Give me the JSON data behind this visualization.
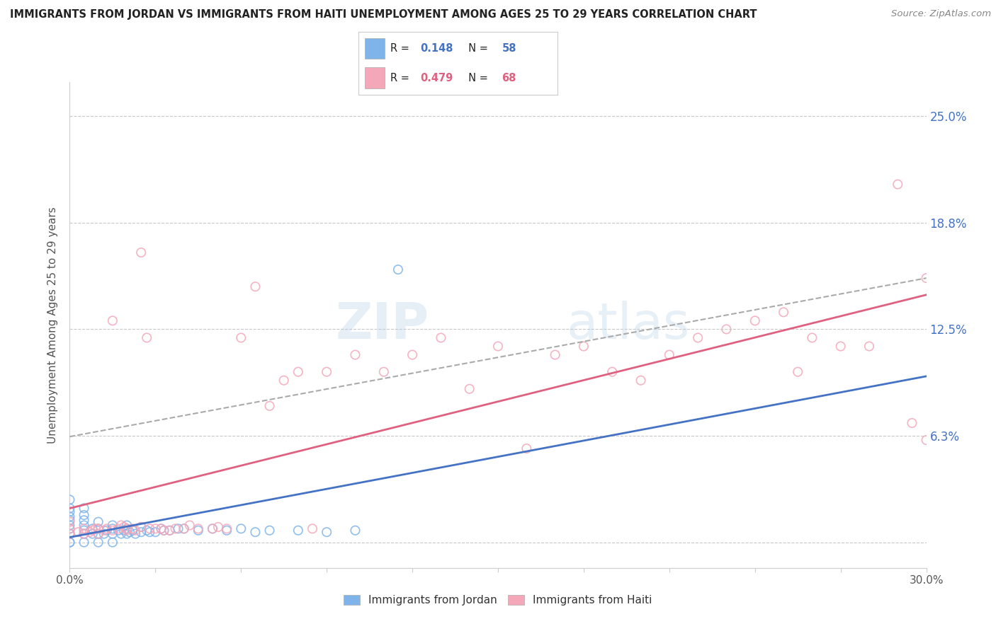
{
  "title": "IMMIGRANTS FROM JORDAN VS IMMIGRANTS FROM HAITI UNEMPLOYMENT AMONG AGES 25 TO 29 YEARS CORRELATION CHART",
  "source": "Source: ZipAtlas.com",
  "ylabel": "Unemployment Among Ages 25 to 29 years",
  "xlim": [
    0.0,
    0.3
  ],
  "ylim": [
    -0.015,
    0.27
  ],
  "ytick_vals": [
    0.0,
    0.0625,
    0.125,
    0.1875,
    0.25
  ],
  "ytick_labels": [
    "",
    "6.3%",
    "12.5%",
    "18.8%",
    "25.0%"
  ],
  "jordan_color": "#7eb4ea",
  "haiti_color": "#f4a7b9",
  "jordan_line_color": "#4472c4",
  "haiti_line_color": "#e06080",
  "jordan_R": 0.148,
  "jordan_N": 58,
  "haiti_R": 0.479,
  "haiti_N": 68,
  "background_color": "#ffffff",
  "grid_color": "#c8c8c8",
  "jordan_scatter_x": [
    0.0,
    0.0,
    0.0,
    0.0,
    0.0,
    0.0,
    0.0,
    0.0,
    0.0,
    0.0,
    0.005,
    0.005,
    0.005,
    0.005,
    0.005,
    0.005,
    0.005,
    0.008,
    0.008,
    0.01,
    0.01,
    0.01,
    0.01,
    0.012,
    0.013,
    0.015,
    0.015,
    0.015,
    0.015,
    0.017,
    0.018,
    0.019,
    0.02,
    0.02,
    0.02,
    0.021,
    0.022,
    0.023,
    0.025,
    0.025,
    0.027,
    0.028,
    0.03,
    0.032,
    0.033,
    0.035,
    0.038,
    0.04,
    0.045,
    0.05,
    0.055,
    0.06,
    0.065,
    0.07,
    0.08,
    0.09,
    0.1,
    0.115
  ],
  "jordan_scatter_y": [
    0.0,
    0.0,
    0.005,
    0.008,
    0.01,
    0.013,
    0.015,
    0.018,
    0.02,
    0.025,
    0.0,
    0.005,
    0.007,
    0.01,
    0.013,
    0.016,
    0.02,
    0.005,
    0.008,
    0.0,
    0.005,
    0.008,
    0.012,
    0.005,
    0.007,
    0.0,
    0.005,
    0.008,
    0.01,
    0.007,
    0.005,
    0.007,
    0.005,
    0.008,
    0.01,
    0.006,
    0.007,
    0.005,
    0.006,
    0.009,
    0.007,
    0.006,
    0.006,
    0.008,
    0.007,
    0.007,
    0.008,
    0.008,
    0.007,
    0.008,
    0.007,
    0.008,
    0.006,
    0.007,
    0.007,
    0.006,
    0.007,
    0.16
  ],
  "haiti_scatter_x": [
    0.0,
    0.0,
    0.0,
    0.003,
    0.005,
    0.005,
    0.007,
    0.008,
    0.009,
    0.01,
    0.01,
    0.012,
    0.013,
    0.015,
    0.015,
    0.017,
    0.018,
    0.019,
    0.02,
    0.02,
    0.022,
    0.023,
    0.025,
    0.025,
    0.027,
    0.028,
    0.03,
    0.032,
    0.033,
    0.035,
    0.037,
    0.04,
    0.042,
    0.045,
    0.05,
    0.052,
    0.055,
    0.06,
    0.065,
    0.07,
    0.075,
    0.08,
    0.085,
    0.09,
    0.1,
    0.11,
    0.12,
    0.13,
    0.14,
    0.15,
    0.16,
    0.17,
    0.18,
    0.19,
    0.2,
    0.21,
    0.22,
    0.23,
    0.24,
    0.25,
    0.255,
    0.26,
    0.27,
    0.28,
    0.29,
    0.295,
    0.3,
    0.3
  ],
  "haiti_scatter_y": [
    0.005,
    0.008,
    0.012,
    0.006,
    0.005,
    0.008,
    0.006,
    0.007,
    0.008,
    0.005,
    0.008,
    0.007,
    0.008,
    0.007,
    0.13,
    0.008,
    0.01,
    0.009,
    0.007,
    0.008,
    0.008,
    0.007,
    0.009,
    0.17,
    0.12,
    0.008,
    0.008,
    0.008,
    0.007,
    0.007,
    0.008,
    0.008,
    0.01,
    0.008,
    0.008,
    0.009,
    0.008,
    0.12,
    0.15,
    0.08,
    0.095,
    0.1,
    0.008,
    0.1,
    0.11,
    0.1,
    0.11,
    0.12,
    0.09,
    0.115,
    0.055,
    0.11,
    0.115,
    0.1,
    0.095,
    0.11,
    0.12,
    0.125,
    0.13,
    0.135,
    0.1,
    0.12,
    0.115,
    0.115,
    0.21,
    0.07,
    0.06,
    0.155
  ]
}
